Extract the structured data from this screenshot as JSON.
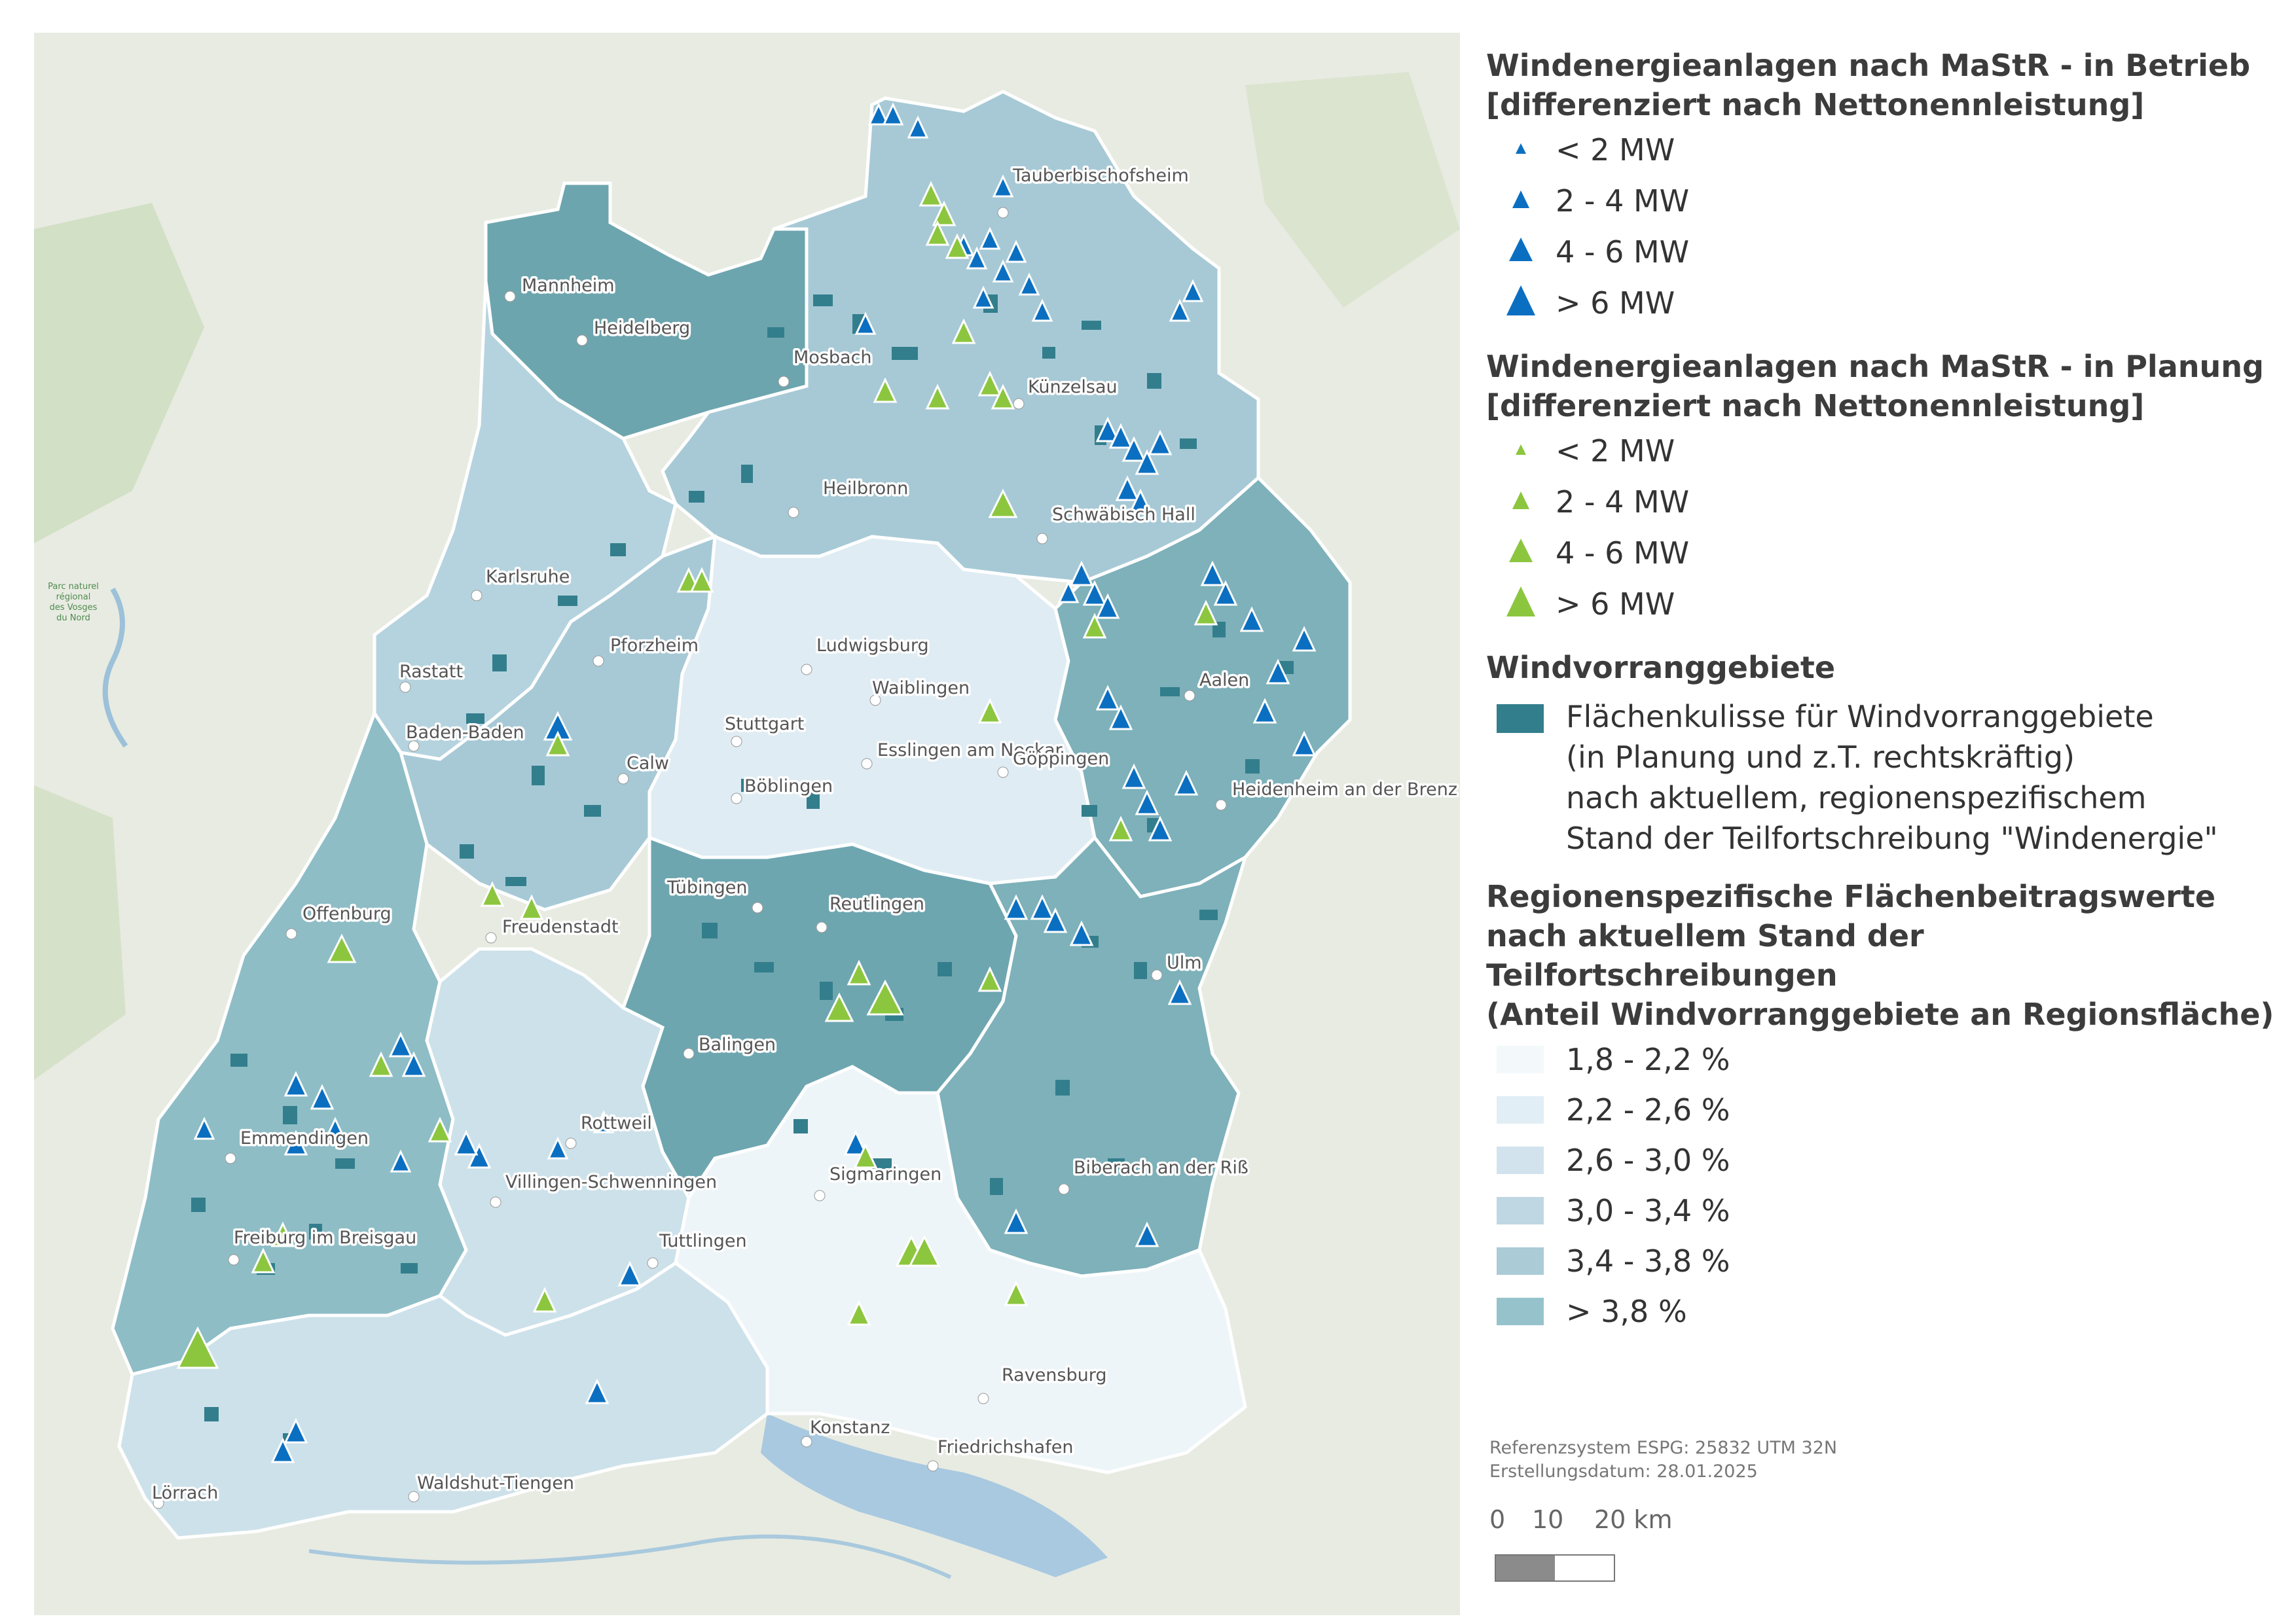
{
  "legend": {
    "in_betrieb": {
      "title_line1": "Windenergieanlagen nach MaStR - in Betrieb",
      "title_line2": "[differenziert nach Nettonennleistung]",
      "classes": [
        "< 2 MW",
        "2 - 4 MW",
        "4 - 6 MW",
        "> 6 MW"
      ],
      "color": "#0b6fc1"
    },
    "in_planung": {
      "title_line1": "Windenergieanlagen nach MaStR - in Planung",
      "title_line2": "[differenziert nach Nettonennleistung]",
      "classes": [
        "< 2 MW",
        "2 - 4 MW",
        "4 - 6 MW",
        "> 6 MW"
      ],
      "color": "#8cc63e"
    },
    "vorranggebiete": {
      "title": "Windvorranggebiete",
      "line1": "Flächenkulisse für Windvorranggebiete",
      "line2": "(in Planung und z.T. rechtskräftig)",
      "line3": "nach aktuellem, regionenspezifischem",
      "line4": "Stand der Teilfortschreibung \"Windenergie\"",
      "color": "#337e8c"
    },
    "beitragswerte": {
      "title_line1": "Regionenspezifische Flächenbeitragswerte",
      "title_line2": "nach aktuellem Stand der Teilfortschreibungen",
      "title_line3": "(Anteil Windvorranggebiete an Regionsfläche)",
      "classes": [
        {
          "label": "1,8 - 2,2 %",
          "color": "#f3f8fb"
        },
        {
          "label": "2,2 - 2,6 %",
          "color": "#e2eef5"
        },
        {
          "label": "2,6 - 3,0 %",
          "color": "#d2e3ee"
        },
        {
          "label": "3,0 - 3,4 %",
          "color": "#bfd7e3"
        },
        {
          "label": "3,4 - 3,8 %",
          "color": "#abcbd7"
        },
        {
          "label": "> 3,8 %",
          "color": "#96c3cb"
        }
      ]
    }
  },
  "footer": {
    "crs": "Referenzsystem ESPG: 25832 UTM 32N",
    "date": "Erstellungsdatum: 28.01.2025"
  },
  "scale": {
    "labels": [
      "0",
      "10",
      "20 km"
    ]
  },
  "cities": [
    "Mannheim",
    "Heidelberg",
    "Mosbach",
    "Tauberbischofsheim",
    "Künzelsau",
    "Heilbronn",
    "Schwäbisch Hall",
    "Karlsruhe",
    "Pforzheim",
    "Ludwigsburg",
    "Rastatt",
    "Waiblingen",
    "Aalen",
    "Stuttgart",
    "Baden-Baden",
    "Calw",
    "Böblingen",
    "Esslingen am Neckar",
    "Göppingen",
    "Heidenheim an der Brenz",
    "Tübingen",
    "Reutlingen",
    "Offenburg",
    "Freudenstadt",
    "Ulm",
    "Balingen",
    "Emmendingen",
    "Rottweil",
    "Sigmaringen",
    "Biberach an der Riß",
    "Villingen-Schwenningen",
    "Freiburg im Breisgau",
    "Tuttlingen",
    "Ravensburg",
    "Konstanz",
    "Friedrichshafen",
    "Lörrach",
    "Waldshut-Tiengen"
  ],
  "map_misc": {
    "park_label_1": "Parc naturel",
    "park_label_2": "régional",
    "park_label_3": "des Vosges",
    "park_label_4": "du Nord"
  }
}
